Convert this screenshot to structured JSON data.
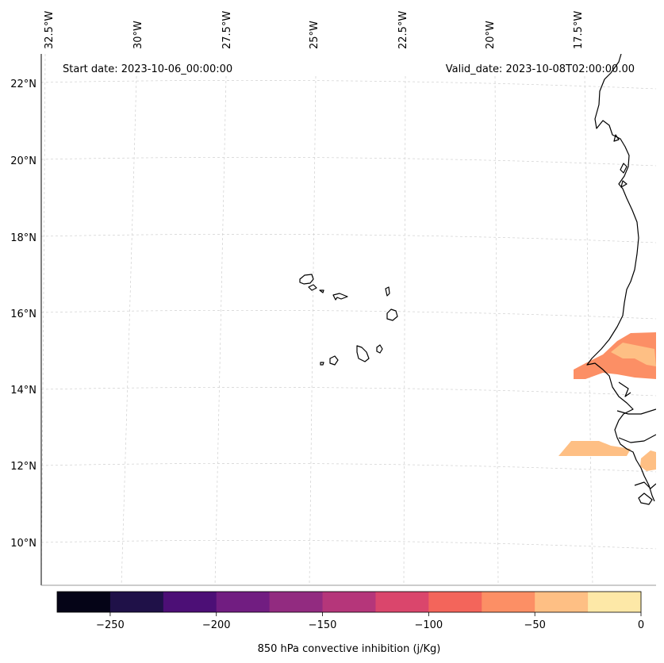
{
  "map": {
    "start_label": "Start date: 2023-10-06_00:00:00",
    "valid_label": "Valid_date: 2023-10-08T02:00:00.00",
    "lon_labels": [
      "32.5°W",
      "30°W",
      "27.5°W",
      "25°W",
      "22.5°W",
      "20°W",
      "17.5°W"
    ],
    "lat_labels": [
      "22°N",
      "20°N",
      "18°N",
      "16°N",
      "14°N",
      "12°N",
      "10°N"
    ],
    "field_colors": {
      "minus_75_to_minus_50": "#fc8f65",
      "minus_50_to_minus_25": "#febf84"
    }
  },
  "colorbar": {
    "label": "850 hPa convective inhibition (j/Kg)",
    "min": -275,
    "max": 0,
    "ticks": [
      "−250",
      "−200",
      "−150",
      "−100",
      "−50",
      "0"
    ],
    "tick_values": [
      -250,
      -200,
      -150,
      -100,
      -50,
      0
    ],
    "bins": [
      {
        "from": -275,
        "to": -250,
        "color": "#050417"
      },
      {
        "from": -250,
        "to": -225,
        "color": "#1f1148"
      },
      {
        "from": -225,
        "to": -200,
        "color": "#4c0f76"
      },
      {
        "from": -200,
        "to": -175,
        "color": "#711d81"
      },
      {
        "from": -175,
        "to": -150,
        "color": "#922b80"
      },
      {
        "from": -150,
        "to": -125,
        "color": "#b5367a"
      },
      {
        "from": -125,
        "to": -100,
        "color": "#da466c"
      },
      {
        "from": -100,
        "to": -75,
        "color": "#f3655b"
      },
      {
        "from": -75,
        "to": -50,
        "color": "#fc8f65"
      },
      {
        "from": -50,
        "to": -25,
        "color": "#febf84"
      },
      {
        "from": -25,
        "to": 0,
        "color": "#fde8a7"
      }
    ]
  }
}
